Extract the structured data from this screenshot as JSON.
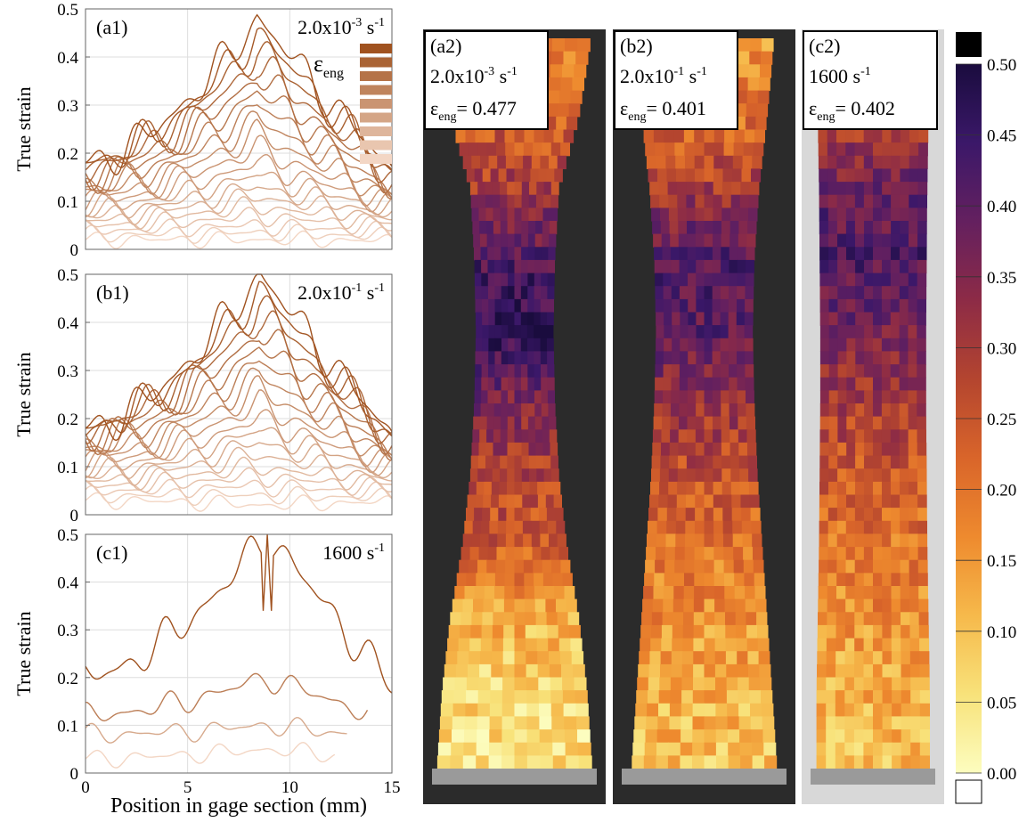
{
  "palette": {
    "line_dark": "#a0521f",
    "line_light": "#f3d6c4",
    "frame": "#666666",
    "grid": "#dddddd",
    "cmap": [
      "#fcfdbf",
      "#f8e27a",
      "#f6b94b",
      "#ee8a2e",
      "#d9652a",
      "#b4452f",
      "#8d2b46",
      "#64205f",
      "#3b1869",
      "#1a0c3e"
    ],
    "over_color": "#000000",
    "under_color": "#ffffff"
  },
  "left_panels": {
    "ylabel": "True strain",
    "xlabel": "Position in gage section (mm)",
    "x_ticks": [
      "0",
      "5",
      "10",
      "15"
    ],
    "y_ticks": [
      "0",
      "0.1",
      "0.2",
      "0.3",
      "0.4",
      "0.5"
    ],
    "legend_symbol": "ε",
    "legend_subscript": "eng"
  },
  "chart_data": [
    {
      "type": "line",
      "panel": "(a1)",
      "rate_base": "2.0x10",
      "rate_exp": "-3",
      "rate_unit": "s",
      "rate_unit_exp": "-1",
      "xlim": [
        0,
        15
      ],
      "ylim": [
        0,
        0.5
      ],
      "x_peak": 8.4,
      "x_end": 15.0,
      "peak_values": [
        0.02,
        0.035,
        0.05,
        0.07,
        0.09,
        0.11,
        0.13,
        0.155,
        0.18,
        0.21,
        0.24,
        0.27,
        0.3,
        0.33,
        0.36,
        0.39,
        0.42,
        0.45,
        0.48
      ],
      "edge_values": [
        0.02,
        0.03,
        0.04,
        0.05,
        0.06,
        0.07,
        0.08,
        0.09,
        0.1,
        0.11,
        0.12,
        0.13,
        0.14,
        0.15,
        0.16,
        0.17,
        0.18,
        0.18,
        0.18
      ]
    },
    {
      "type": "line",
      "panel": "(b1)",
      "rate_base": "2.0x10",
      "rate_exp": "-1",
      "rate_unit": "s",
      "rate_unit_exp": "-1",
      "xlim": [
        0,
        15
      ],
      "ylim": [
        0,
        0.5
      ],
      "x_peak": 8.5,
      "x_end": 15.0,
      "peak_values": [
        0.02,
        0.04,
        0.06,
        0.08,
        0.1,
        0.125,
        0.15,
        0.175,
        0.2,
        0.23,
        0.26,
        0.29,
        0.32,
        0.35,
        0.38,
        0.41,
        0.44,
        0.47,
        0.5
      ],
      "edge_values": [
        0.03,
        0.04,
        0.05,
        0.06,
        0.07,
        0.08,
        0.09,
        0.1,
        0.11,
        0.12,
        0.13,
        0.14,
        0.15,
        0.16,
        0.17,
        0.18,
        0.18,
        0.18,
        0.18
      ]
    },
    {
      "type": "line",
      "panel": "(c1)",
      "rate_base": "1600",
      "rate_exp": "",
      "rate_unit": "s",
      "rate_unit_exp": "-1",
      "xlim": [
        0,
        15
      ],
      "ylim": [
        0,
        0.5
      ],
      "x_peak": 8.9,
      "x_ends": [
        12.2,
        12.8,
        13.8,
        15.0
      ],
      "peak_values": [
        0.05,
        0.1,
        0.2,
        0.5
      ],
      "edge_values": [
        0.03,
        0.08,
        0.12,
        0.2
      ]
    }
  ],
  "dic_panels": [
    {
      "label": "(a2)",
      "rate_base": "2.0x10",
      "rate_exp": "-3",
      "rate_unit": "s",
      "rate_unit_exp": "-1",
      "eps_symbol": "ε",
      "eps_sub": "eng",
      "eps_value": "= 0.477"
    },
    {
      "label": "(b2)",
      "rate_base": "2.0x10",
      "rate_exp": "-1",
      "rate_unit": "s",
      "rate_unit_exp": "-1",
      "eps_symbol": "ε",
      "eps_sub": "eng",
      "eps_value": "= 0.401"
    },
    {
      "label": "(c2)",
      "rate_base": "1600",
      "rate_exp": "",
      "rate_unit": "s",
      "rate_unit_exp": "-1",
      "eps_symbol": "ε",
      "eps_sub": "eng",
      "eps_value": "= 0.402"
    }
  ],
  "colorbar": {
    "ticks": [
      "0.50",
      "0.45",
      "0.40",
      "0.35",
      "0.30",
      "0.25",
      "0.20",
      "0.15",
      "0.10",
      "0.05",
      "0.00"
    ],
    "range": [
      0,
      0.5
    ]
  }
}
